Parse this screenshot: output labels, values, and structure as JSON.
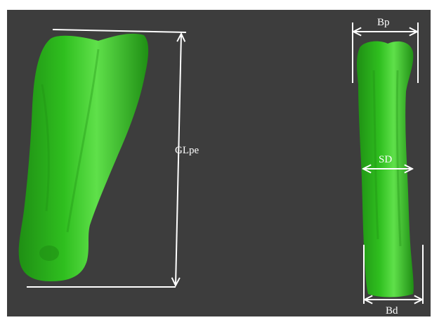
{
  "colors": {
    "background": "#3d3d3d",
    "bone": "#2fbf1f",
    "bone_shadow": "#1f8f14",
    "bone_highlight": "#5fe04a",
    "measure_line": "#ffffff"
  },
  "labels": {
    "glpe": "GLpe",
    "bp": "Bp",
    "sd": "SD",
    "bd": "Bd"
  }
}
